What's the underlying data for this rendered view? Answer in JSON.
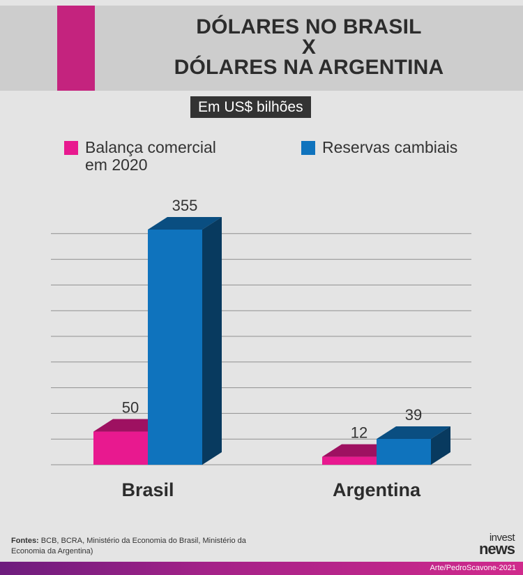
{
  "header": {
    "title_lines": [
      "DÓLARES NO BRASIL",
      "X",
      "DÓLARES NA ARGENTINA"
    ],
    "accent_color": "#c4237e"
  },
  "unit_label": "Em US$ bilhões",
  "chart_data": {
    "type": "bar",
    "categories": [
      "Brasil",
      "Argentina"
    ],
    "series": [
      {
        "name": "Balança comercial em 2020",
        "values": [
          50,
          12
        ],
        "color": "#e8198f"
      },
      {
        "name": "Reservas cambiais",
        "values": [
          355,
          39
        ],
        "color": "#0f73bd"
      }
    ],
    "legend_position": "top",
    "grid": true,
    "ylim": [
      0,
      355
    ]
  },
  "legend": {
    "items": [
      {
        "line1": "Balança comercial",
        "line2": "em 2020",
        "color": "#e8198f"
      },
      {
        "line1": "Reservas cambiais",
        "line2": "",
        "color": "#0f73bd"
      }
    ]
  },
  "footer": {
    "sources_label": "Fontes:",
    "sources_text": " BCB, BCRA, Ministério da Economia do Brasil, Ministério da Economia da Argentina)",
    "logo_top": "invest",
    "logo_bottom": "news",
    "credit": "Arte/PedroScavone-2021"
  }
}
